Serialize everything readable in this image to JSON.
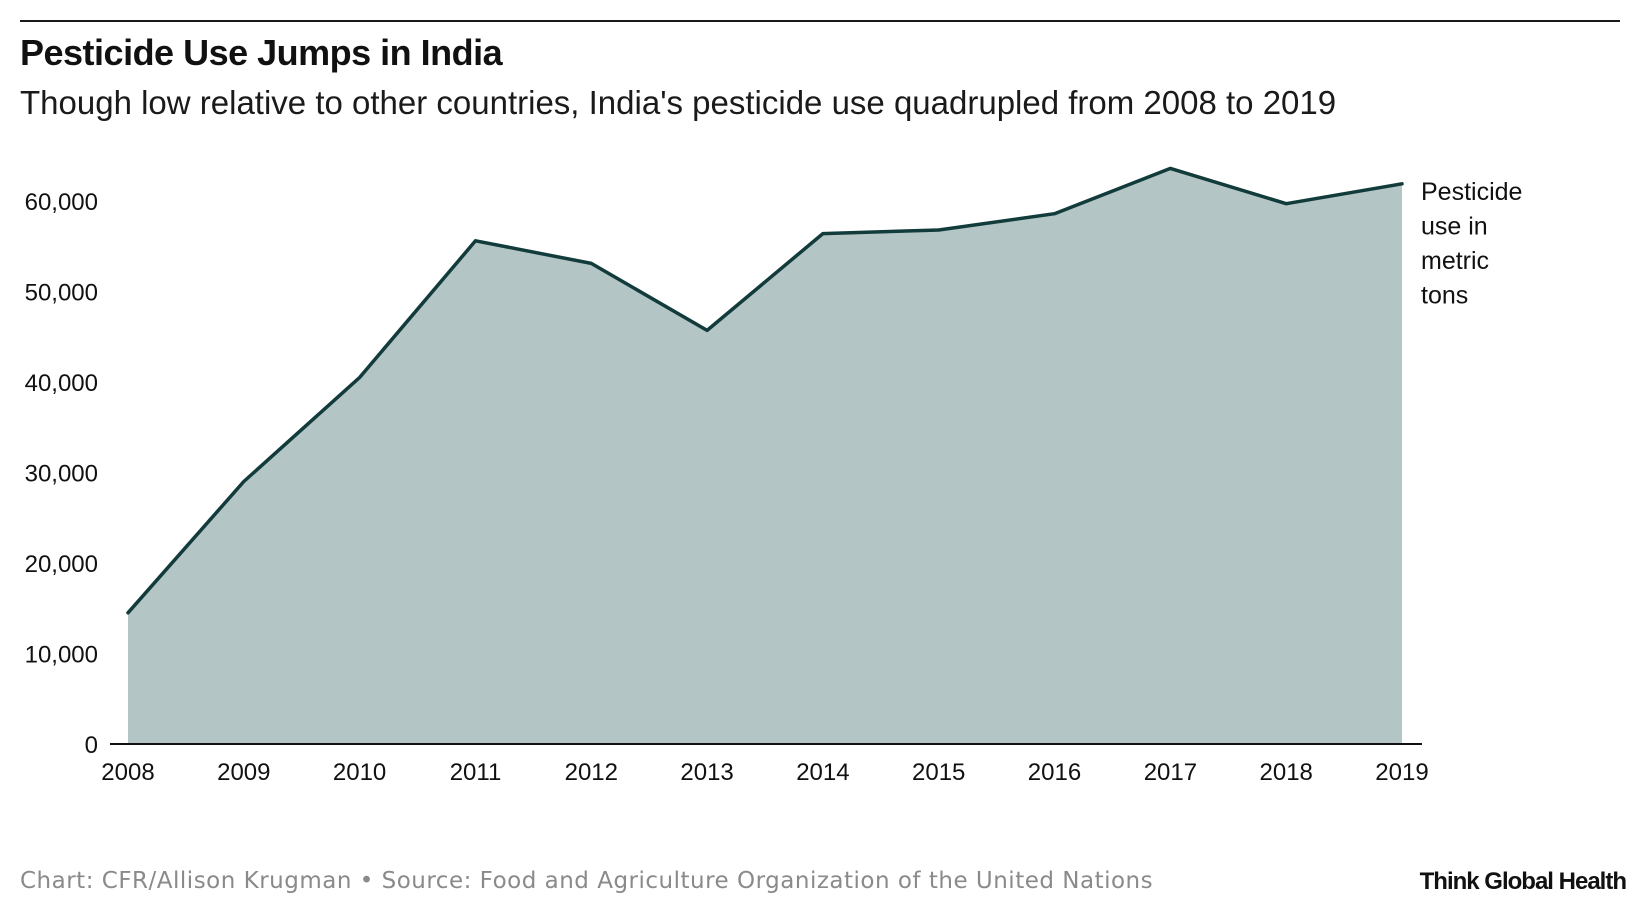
{
  "header": {
    "title": "Pesticide Use Jumps in India",
    "subtitle": "Though low relative to other countries, India's pesticide use quadrupled from 2008 to 2019"
  },
  "footer": {
    "source": "Chart: CFR/Allison Krugman • Source: Food and Agriculture Organization of the United Nations",
    "brand": "Think Global Health"
  },
  "colors": {
    "area_fill": "#b4c5c5",
    "line": "#123b3b",
    "axis": "#111111"
  },
  "chart_data": {
    "type": "area",
    "title": "Pesticide Use Jumps in India",
    "subtitle": "Though low relative to other countries, India's pesticide use quadrupled from 2008 to 2019",
    "xlabel": "",
    "ylabel": "",
    "categories": [
      "2008",
      "2009",
      "2010",
      "2011",
      "2012",
      "2013",
      "2014",
      "2015",
      "2016",
      "2017",
      "2018",
      "2019"
    ],
    "series": [
      {
        "name": "Pesticide use in metric tons",
        "label_lines": [
          "Pesticide",
          "use in",
          "metric",
          "tons"
        ],
        "values": [
          14500,
          29000,
          40500,
          55600,
          53100,
          45700,
          56400,
          56800,
          58600,
          63600,
          59700,
          61900
        ]
      }
    ],
    "ylim": [
      0,
      64000
    ],
    "yticks": [
      0,
      10000,
      20000,
      30000,
      40000,
      50000,
      60000
    ],
    "ytick_labels": [
      "0",
      "10,000",
      "20,000",
      "30,000",
      "40,000",
      "50,000",
      "60,000"
    ],
    "grid": false,
    "legend": "direct label at end of series"
  }
}
